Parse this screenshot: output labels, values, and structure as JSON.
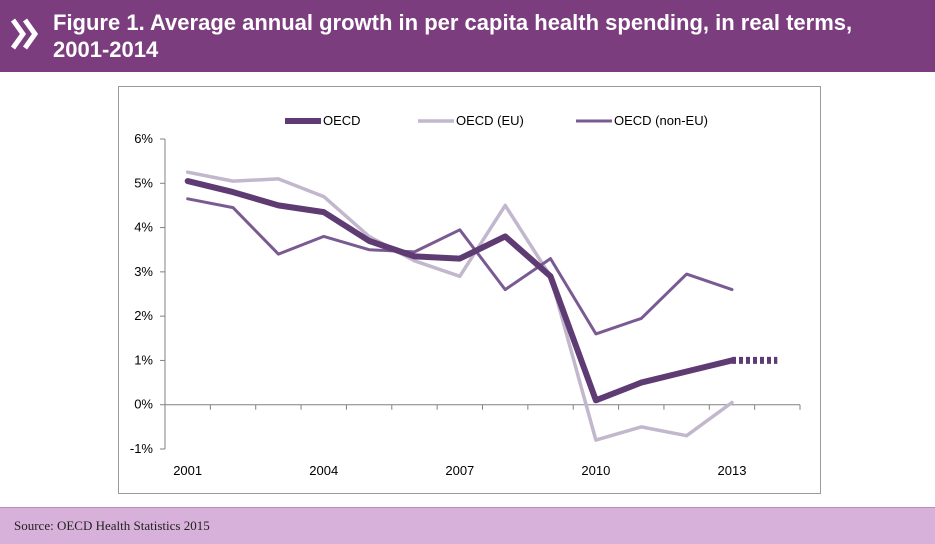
{
  "header": {
    "title": "Figure 1.  Average annual growth in per capita health spending, in real terms, 2001-2014",
    "logo": "oecd-chevron-logo"
  },
  "footer": {
    "source": "Source: OECD Health Statistics 2015"
  },
  "colors": {
    "header_bg": "#7b3d7e",
    "footer_bg": "#d7b1d9",
    "oecd": "#5e3c73",
    "oecd_eu": "#c2b7cc",
    "oecd_non_eu": "#7a5a92"
  },
  "chart_data": {
    "type": "line",
    "title": "Average annual growth in per capita health spending, in real terms, 2001-2014",
    "xlabel": "",
    "ylabel": "",
    "x": [
      2001,
      2002,
      2003,
      2004,
      2005,
      2006,
      2007,
      2008,
      2009,
      2010,
      2011,
      2012,
      2013,
      2014
    ],
    "x_tick_labels": [
      "2001",
      "2004",
      "2007",
      "2010",
      "2013"
    ],
    "y_tick_labels": [
      "-1%",
      "0%",
      "1%",
      "2%",
      "3%",
      "4%",
      "5%",
      "6%"
    ],
    "ylim": [
      -1,
      6
    ],
    "legend_position": "top",
    "series": [
      {
        "name": "OECD",
        "values": [
          5.05,
          4.8,
          4.5,
          4.35,
          3.7,
          3.35,
          3.3,
          3.8,
          2.9,
          0.1,
          0.5,
          0.75,
          1.0,
          null
        ],
        "projected": [
          null,
          null,
          null,
          null,
          null,
          null,
          null,
          null,
          null,
          null,
          null,
          null,
          1.0,
          1.0
        ],
        "style": "thick"
      },
      {
        "name": "OECD (EU)",
        "values": [
          5.25,
          5.05,
          5.1,
          4.7,
          3.8,
          3.25,
          2.9,
          4.5,
          2.9,
          -0.8,
          -0.5,
          -0.7,
          0.05,
          null
        ],
        "style": "light"
      },
      {
        "name": "OECD (non-EU)",
        "values": [
          4.65,
          4.45,
          3.4,
          3.8,
          3.5,
          3.45,
          3.95,
          2.6,
          3.3,
          1.6,
          1.95,
          2.95,
          2.6,
          null
        ],
        "style": "medium"
      }
    ]
  }
}
